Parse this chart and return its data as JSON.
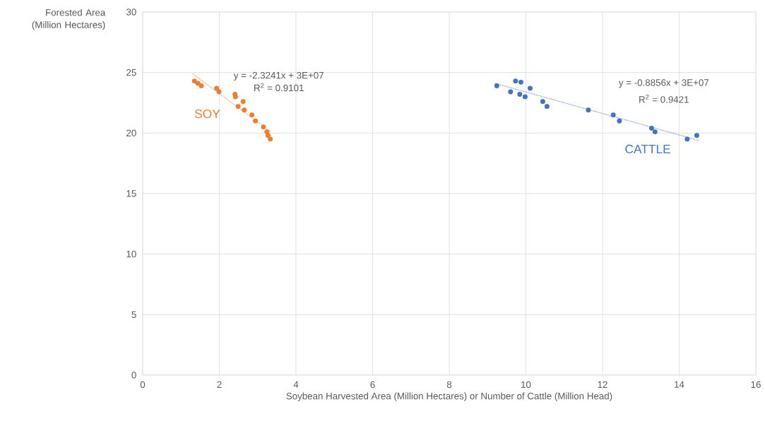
{
  "chart_data": {
    "type": "scatter",
    "xlabel": "Soybean Harvested Area (Million Hectares) or Number of Cattle (Million Head)",
    "ylabel": "Forested Area (Million Hectares)",
    "xlim": [
      0,
      16
    ],
    "ylim": [
      0,
      30
    ],
    "xticks": [
      0,
      2,
      4,
      6,
      8,
      10,
      12,
      14,
      16
    ],
    "yticks": [
      0,
      5,
      10,
      15,
      20,
      25,
      30
    ],
    "grid": true,
    "series": [
      {
        "name": "SOY",
        "color": "#ed7d31",
        "marker": "circle",
        "x": [
          1.35,
          1.44,
          1.53,
          1.93,
          1.99,
          2.41,
          2.42,
          2.62,
          2.49,
          2.65,
          2.85,
          2.94,
          3.15,
          3.24,
          3.27,
          3.33
        ],
        "values": [
          24.3,
          24.1,
          23.9,
          23.7,
          23.4,
          23.2,
          23.0,
          22.6,
          22.2,
          21.9,
          21.5,
          21.0,
          20.5,
          20.1,
          19.8,
          19.5
        ]
      },
      {
        "type": "line",
        "color": "#ed7d31",
        "line_style": "dotted",
        "marker": "none",
        "x": [
          1.3,
          3.35
        ],
        "values": [
          24.9,
          20.1
        ]
      },
      {
        "name": "CATTLE",
        "color": "#4472c4",
        "marker": "circle",
        "x": [
          9.24,
          9.73,
          9.87,
          10.11,
          9.6,
          9.84,
          9.98,
          10.44,
          10.55,
          11.63,
          12.28,
          12.44,
          13.28,
          13.37,
          14.21,
          14.46
        ],
        "values": [
          23.9,
          24.3,
          24.2,
          23.7,
          23.4,
          23.2,
          23.0,
          22.6,
          22.2,
          21.9,
          21.5,
          21.0,
          20.4,
          20.1,
          19.5,
          19.8
        ]
      },
      {
        "type": "line",
        "color": "#4472c4",
        "line_style": "dotted",
        "marker": "none",
        "x": [
          9.2,
          14.5
        ],
        "values": [
          24.1,
          19.4
        ]
      }
    ],
    "annotations": [
      "y = -2.3241x + 3E+07",
      "R$^{2}$ = 0.9101",
      "y = -0.8856x + 3E+07",
      "R$^{2}$ = 0.9421"
    ]
  }
}
